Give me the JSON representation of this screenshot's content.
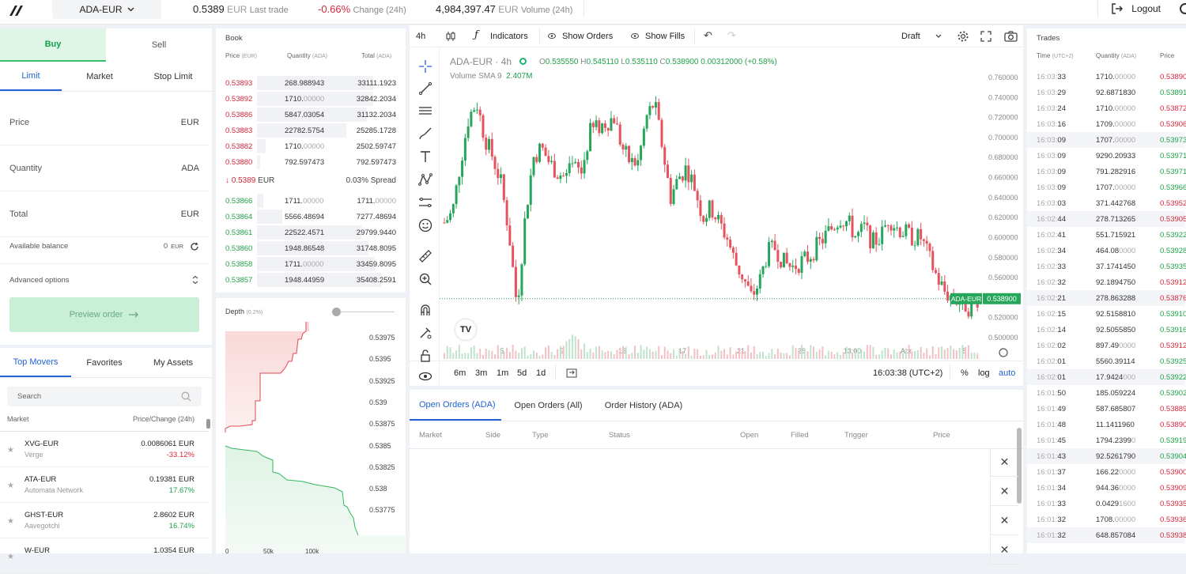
{
  "topbar": {
    "pair": "ADA-EUR",
    "last_trade": {
      "value": "0.5389",
      "unit": "EUR",
      "label": "Last trade"
    },
    "change": {
      "value": "-0.66%",
      "label": "Change (24h)"
    },
    "volume": {
      "value": "4,984,397.47",
      "unit": "EUR",
      "label": "Volume (24h)"
    },
    "logout": "Logout"
  },
  "order_form": {
    "side_tabs": [
      "Buy",
      "Sell"
    ],
    "type_tabs": [
      "Limit",
      "Market",
      "Stop Limit"
    ],
    "price_label": "Price",
    "price_unit": "EUR",
    "quantity_label": "Quantity",
    "quantity_unit": "ADA",
    "total_label": "Total",
    "total_unit": "EUR",
    "balance_label": "Available balance",
    "balance_value": "0",
    "balance_unit": "EUR",
    "advanced_label": "Advanced options",
    "preview_label": "Preview order"
  },
  "markets": {
    "tabs": [
      "Top Movers",
      "Favorites",
      "My Assets"
    ],
    "search_placeholder": "Search",
    "col_market": "Market",
    "col_price": "Price/Change (24h)",
    "rows": [
      {
        "pair": "XVG-EUR",
        "name": "Verge",
        "price": "0.0086061 EUR",
        "change": "-33.12%",
        "dir": "down"
      },
      {
        "pair": "ATA-EUR",
        "name": "Automata Network",
        "price": "0.19381 EUR",
        "change": "17.67%",
        "dir": "up"
      },
      {
        "pair": "GHST-EUR",
        "name": "Aavegotchi",
        "price": "2.8602 EUR",
        "change": "16.74%",
        "dir": "up"
      },
      {
        "pair": "W-EUR",
        "name": "",
        "price": "1.0354 EUR",
        "change": "",
        "dir": "up"
      }
    ]
  },
  "book": {
    "title": "Book",
    "col_price": "Price",
    "col_price_unit": "(EUR)",
    "col_qty": "Quantity",
    "col_qty_unit": "(ADA)",
    "col_total": "Total",
    "col_total_unit": "(ADA)",
    "asks": [
      {
        "price": "0.53893",
        "qty": "268.988943",
        "qty_dim": "",
        "total": "33111.1923",
        "fill": 0.78
      },
      {
        "price": "0.53892",
        "qty": "1710.",
        "qty_dim": "00000",
        "total": "32842.2034",
        "fill": 0.78
      },
      {
        "price": "0.53886",
        "qty": "5847.03054",
        "qty_dim": "",
        "total": "31132.2034",
        "fill": 0.74
      },
      {
        "price": "0.53883",
        "qty": "22782.5754",
        "qty_dim": "",
        "total": "25285.1728",
        "fill": 0.6
      },
      {
        "price": "0.53882",
        "qty": "1710.",
        "qty_dim": "00000",
        "total": "2502.59747",
        "fill": 0.06
      },
      {
        "price": "0.53880",
        "qty": "792.597473",
        "qty_dim": "",
        "total": "792.597473",
        "fill": 0.02
      }
    ],
    "mid_price": "0.5389",
    "mid_unit": "EUR",
    "spread": "0.03% Spread",
    "bids": [
      {
        "price": "0.53866",
        "qty": "1711.",
        "qty_dim": "00000",
        "total": "1711.",
        "total_dim": "00000",
        "fill": 0.04
      },
      {
        "price": "0.53864",
        "qty": "5566.48694",
        "qty_dim": "",
        "total": "7277.48694",
        "total_dim": "",
        "fill": 0.17
      },
      {
        "price": "0.53861",
        "qty": "22522.4571",
        "qty_dim": "",
        "total": "29799.9440",
        "total_dim": "",
        "fill": 0.7
      },
      {
        "price": "0.53860",
        "qty": "1948.86548",
        "qty_dim": "",
        "total": "31748.8095",
        "total_dim": "",
        "fill": 0.75
      },
      {
        "price": "0.53858",
        "qty": "1711.",
        "qty_dim": "00000",
        "total": "33459.8095",
        "total_dim": "",
        "fill": 0.79
      },
      {
        "price": "0.53857",
        "qty": "1948.44959",
        "qty_dim": "",
        "total": "35408.2591",
        "total_dim": "",
        "fill": 0.84
      }
    ]
  },
  "depth": {
    "title": "Depth",
    "pct": "(0.2%)",
    "y_ticks": [
      "0.53975",
      "0.5395",
      "0.53925",
      "0.539",
      "0.53875",
      "0.5385",
      "0.53825",
      "0.538",
      "0.53775"
    ],
    "x_ticks": [
      "0",
      "50k",
      "100k"
    ]
  },
  "chart_toolbar": {
    "interval": "4h",
    "indicators": "Indicators",
    "show_orders": "Show Orders",
    "show_fills": "Show Fills",
    "draft": "Draft"
  },
  "chart_data": {
    "type": "candlestick",
    "title": "ADA-EUR · 4h",
    "ohlc": {
      "o": "0.535550",
      "h": "0.545110",
      "l": "0.535110",
      "c": "0.538900",
      "chg": "0.00312000 (+0.58%)"
    },
    "volume_label": "Volume SMA 9",
    "volume_value": "2.407M",
    "price_tag_label": "ADA-EUR",
    "price_tag_value": "0.538900",
    "last_price": 0.5389,
    "y_ticks": [
      "0.760000",
      "0.740000",
      "0.720000",
      "0.700000",
      "0.680000",
      "0.660000",
      "0.640000",
      "0.620000",
      "0.600000",
      "0.580000",
      "0.560000",
      "0.540000",
      "0.520000",
      "0.500000"
    ],
    "ylim": [
      0.5,
      0.76
    ],
    "x_ticks": [
      "5",
      "9",
      "13",
      "17",
      "21",
      "25",
      "13:00",
      "Apr",
      "5"
    ],
    "waypoints": [
      0.615,
      0.625,
      0.675,
      0.72,
      0.735,
      0.7,
      0.68,
      0.655,
      0.605,
      0.53,
      0.62,
      0.68,
      0.69,
      0.675,
      0.665,
      0.66,
      0.67,
      0.665,
      0.705,
      0.71,
      0.715,
      0.72,
      0.69,
      0.675,
      0.675,
      0.72,
      0.735,
      0.69,
      0.64,
      0.66,
      0.67,
      0.65,
      0.62,
      0.63,
      0.615,
      0.6,
      0.575,
      0.56,
      0.54,
      0.555,
      0.585,
      0.59,
      0.575,
      0.57,
      0.575,
      0.58,
      0.59,
      0.6,
      0.61,
      0.62,
      0.615,
      0.6,
      0.61,
      0.595,
      0.6,
      0.62,
      0.61,
      0.605,
      0.6,
      0.6,
      0.58,
      0.56,
      0.545,
      0.54,
      0.535,
      0.53,
      0.539
    ]
  },
  "chart_bottom": {
    "ranges": [
      "6m",
      "3m",
      "1m",
      "5d",
      "1d"
    ],
    "clock": "16:03:38 (UTC+2)",
    "pct": "%",
    "log": "log",
    "auto": "auto"
  },
  "orders": {
    "tabs": [
      "Open Orders (ADA)",
      "Open Orders (All)",
      "Order History (ADA)"
    ],
    "cols": [
      "Market",
      "Side",
      "Type",
      "Status",
      "Open",
      "Filled",
      "Trigger",
      "Price"
    ]
  },
  "trades": {
    "title": "Trades",
    "col_time": "Time",
    "col_time_unit": "(UTC+2)",
    "col_qty": "Quantity",
    "col_qty_unit": "(ADA)",
    "col_price": "Price",
    "rows": [
      {
        "t": "16:03:",
        "ts": "33",
        "q": "1710.",
        "qd": "00000",
        "p": "0.53890",
        "s": "sell"
      },
      {
        "t": "16:03:",
        "ts": "29",
        "q": "92.6871830",
        "qd": "",
        "p": "0.53891",
        "s": "buy"
      },
      {
        "t": "16:03:",
        "ts": "24",
        "q": "1710.",
        "qd": "00000",
        "p": "0.53872",
        "s": "sell"
      },
      {
        "t": "16:03:",
        "ts": "16",
        "q": "1709.",
        "qd": "00000",
        "p": "0.53906",
        "s": "sell"
      },
      {
        "t": "16:03:",
        "ts": "09",
        "q": "1707.",
        "qd": "00000",
        "p": "0.53973",
        "s": "buy"
      },
      {
        "t": "16:03:",
        "ts": "09",
        "q": "9290.20933",
        "qd": "",
        "p": "0.53971",
        "s": "buy"
      },
      {
        "t": "16:03:",
        "ts": "09",
        "q": "791.282916",
        "qd": "",
        "p": "0.53971",
        "s": "buy"
      },
      {
        "t": "16:03:",
        "ts": "09",
        "q": "1707.",
        "qd": "00000",
        "p": "0.53966",
        "s": "buy"
      },
      {
        "t": "16:03:",
        "ts": "03",
        "q": "371.442768",
        "qd": "",
        "p": "0.53952",
        "s": "sell"
      },
      {
        "t": "16:02:",
        "ts": "44",
        "q": "278.713265",
        "qd": "",
        "p": "0.53905",
        "s": "sell"
      },
      {
        "t": "16:02:",
        "ts": "41",
        "q": "551.715921",
        "qd": "",
        "p": "0.53922",
        "s": "buy"
      },
      {
        "t": "16:02:",
        "ts": "34",
        "q": "464.08",
        "qd": "0000",
        "p": "0.53928",
        "s": "buy"
      },
      {
        "t": "16:02:",
        "ts": "33",
        "q": "37.1741450",
        "qd": "",
        "p": "0.53935",
        "s": "buy"
      },
      {
        "t": "16:02:",
        "ts": "32",
        "q": "92.1894750",
        "qd": "",
        "p": "0.53912",
        "s": "sell"
      },
      {
        "t": "16:02:",
        "ts": "21",
        "q": "278.863288",
        "qd": "",
        "p": "0.53876",
        "s": "sell"
      },
      {
        "t": "16:02:",
        "ts": "15",
        "q": "92.5158810",
        "qd": "",
        "p": "0.53910",
        "s": "buy"
      },
      {
        "t": "16:02:",
        "ts": "14",
        "q": "92.5055850",
        "qd": "",
        "p": "0.53916",
        "s": "buy"
      },
      {
        "t": "16:02:",
        "ts": "02",
        "q": "897.49",
        "qd": "0000",
        "p": "0.53912",
        "s": "sell"
      },
      {
        "t": "16:02:",
        "ts": "01",
        "q": "5560.39114",
        "qd": "",
        "p": "0.53925",
        "s": "buy"
      },
      {
        "t": "16:02:",
        "ts": "01",
        "q": "17.9424",
        "qd": "000",
        "p": "0.53922",
        "s": "buy"
      },
      {
        "t": "16:01:",
        "ts": "50",
        "q": "185.059224",
        "qd": "",
        "p": "0.53902",
        "s": "buy"
      },
      {
        "t": "16:01:",
        "ts": "49",
        "q": "587.685807",
        "qd": "",
        "p": "0.53889",
        "s": "sell"
      },
      {
        "t": "16:01:",
        "ts": "48",
        "q": "11.1411960",
        "qd": "",
        "p": "0.53890",
        "s": "sell"
      },
      {
        "t": "16:01:",
        "ts": "45",
        "q": "1794.2399",
        "qd": "0",
        "p": "0.53919",
        "s": "buy"
      },
      {
        "t": "16:01:",
        "ts": "43",
        "q": "92.5261790",
        "qd": "",
        "p": "0.53904",
        "s": "buy"
      },
      {
        "t": "16:01:",
        "ts": "37",
        "q": "166.22",
        "qd": "0000",
        "p": "0.53900",
        "s": "sell"
      },
      {
        "t": "16:01:",
        "ts": "34",
        "q": "944.36",
        "qd": "0000",
        "p": "0.53909",
        "s": "sell"
      },
      {
        "t": "16:01:",
        "ts": "33",
        "q": "0.0429",
        "qd": "1600",
        "p": "0.53935",
        "s": "sell"
      },
      {
        "t": "16:01:",
        "ts": "32",
        "q": "1708.",
        "qd": "00000",
        "p": "0.53936",
        "s": "sell"
      },
      {
        "t": "16:01:",
        "ts": "32",
        "q": "648.857084",
        "qd": "",
        "p": "0.53938",
        "s": "sell"
      }
    ]
  },
  "colors": {
    "buy": "#22a14b",
    "sell": "#d3293c",
    "accent": "#2462d6"
  }
}
